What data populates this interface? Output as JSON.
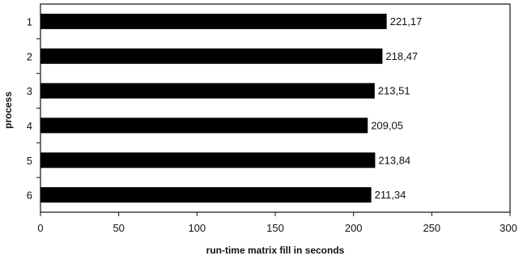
{
  "chart_data": {
    "type": "bar",
    "orientation": "horizontal",
    "title": "",
    "xlabel": "run-time matrix fill in seconds",
    "ylabel": "process",
    "categories": [
      "1",
      "2",
      "3",
      "4",
      "5",
      "6"
    ],
    "values": [
      221.17,
      218.47,
      213.51,
      209.05,
      213.84,
      211.34
    ],
    "data_labels": [
      "221,17",
      "218,47",
      "213,51",
      "209,05",
      "213,84",
      "211,34"
    ],
    "xlim": [
      0,
      300
    ],
    "x_ticks": [
      "0",
      "50",
      "100",
      "150",
      "200",
      "250",
      "300"
    ],
    "grid": false,
    "legend": "none",
    "bar_color": "#000000"
  }
}
